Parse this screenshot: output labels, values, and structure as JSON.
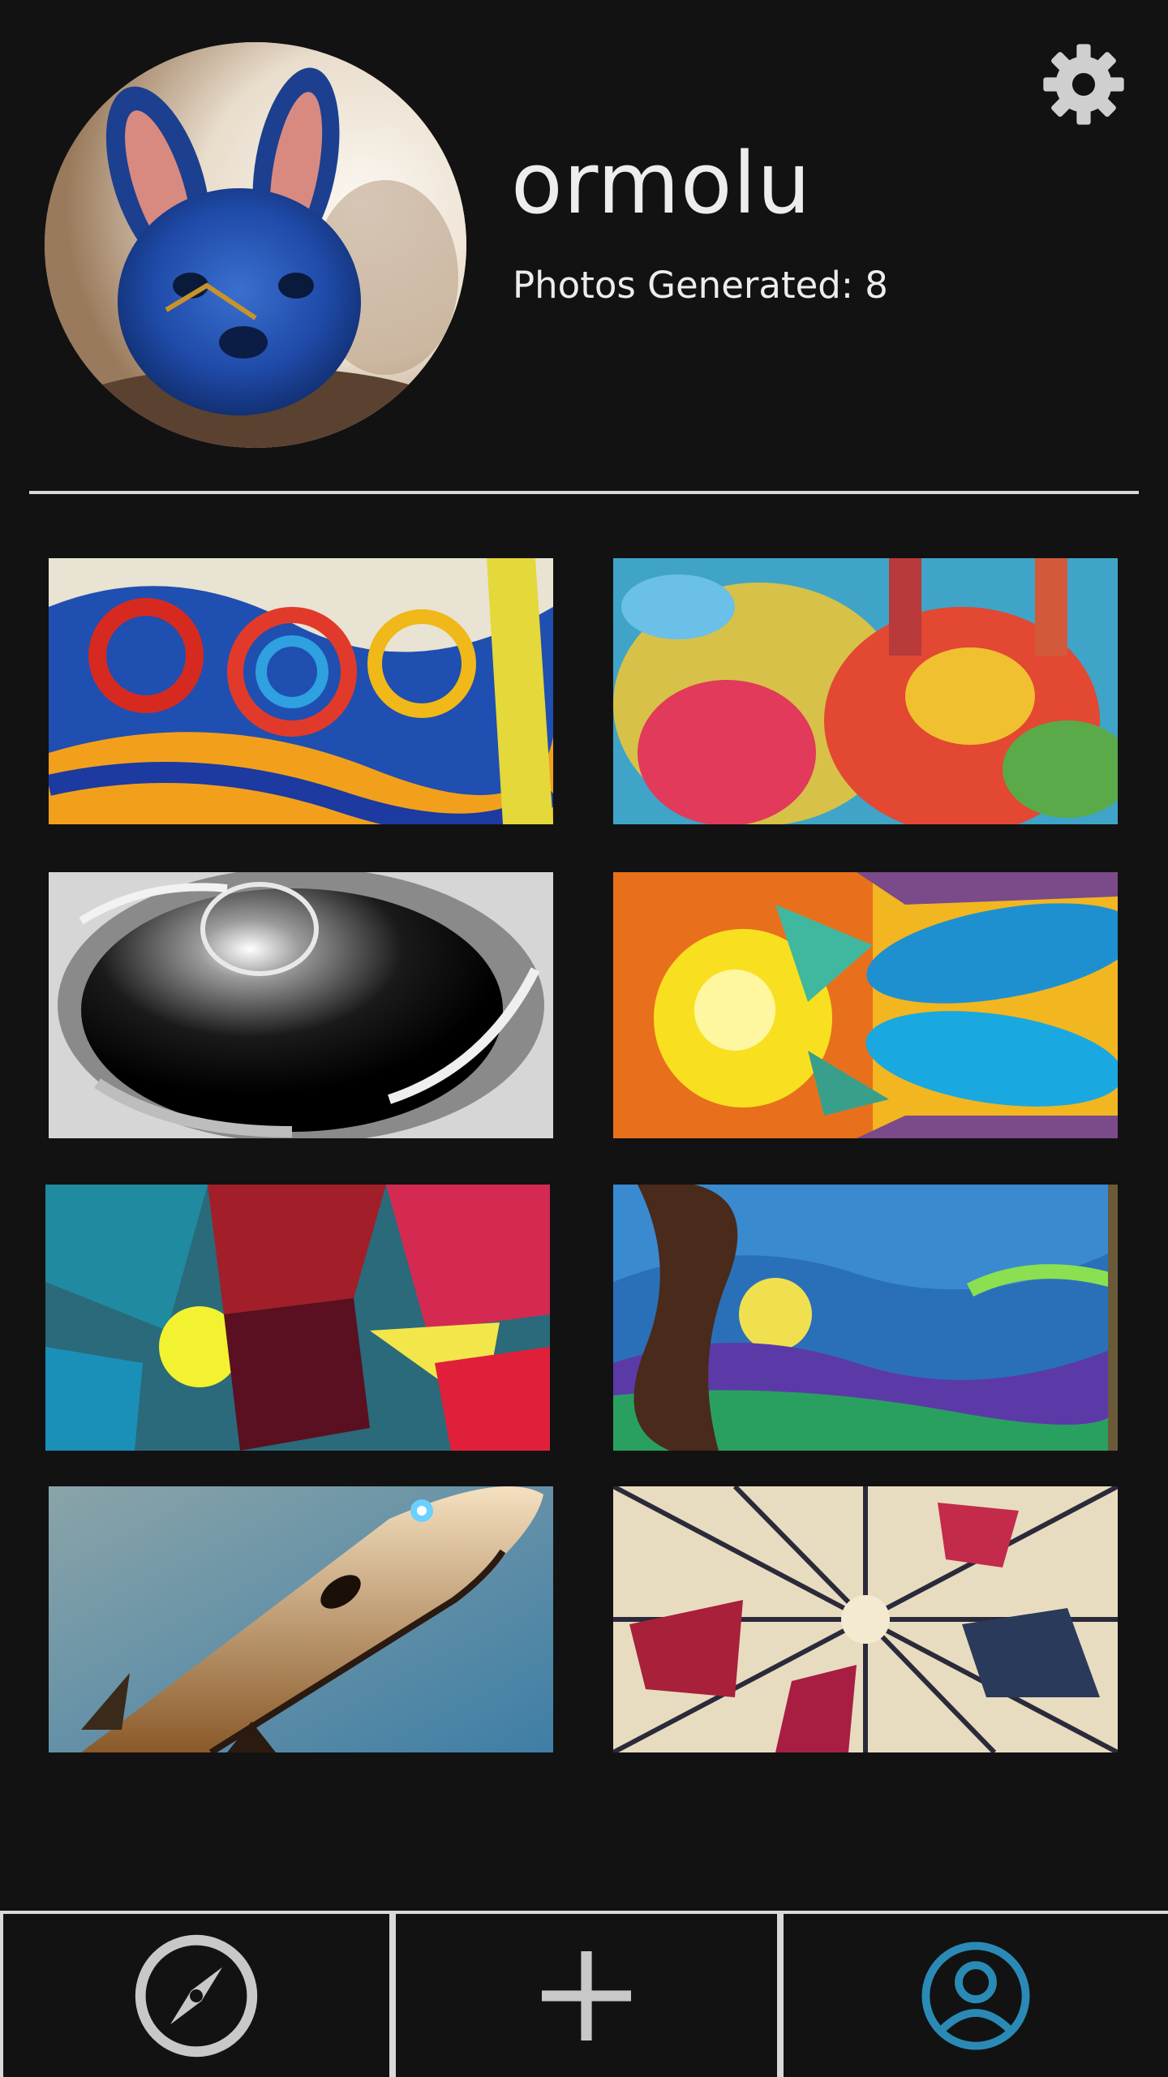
{
  "profile": {
    "username": "ormolu",
    "photos_generated_text": "Photos Generated: 8"
  },
  "icons": {
    "settings": "gear-icon",
    "explore": "compass-icon",
    "create": "plus-icon",
    "profile": "user-circle-icon"
  },
  "colors": {
    "background": "#121212",
    "text": "#ededed",
    "nav_inactive": "#c8c8c8",
    "nav_active": "#2a8ab5",
    "divider": "#d8d8d8"
  },
  "gallery": [
    {
      "description_icon": "abstract-swirl-image"
    },
    {
      "description_icon": "colorful-rabbits-image"
    },
    {
      "description_icon": "black-hole-image"
    },
    {
      "description_icon": "sun-whales-image"
    },
    {
      "description_icon": "crystal-explosion-image"
    },
    {
      "description_icon": "starry-night-image"
    },
    {
      "description_icon": "rocket-image"
    },
    {
      "description_icon": "shattered-collage-image"
    }
  ],
  "nav": {
    "active": "profile"
  }
}
